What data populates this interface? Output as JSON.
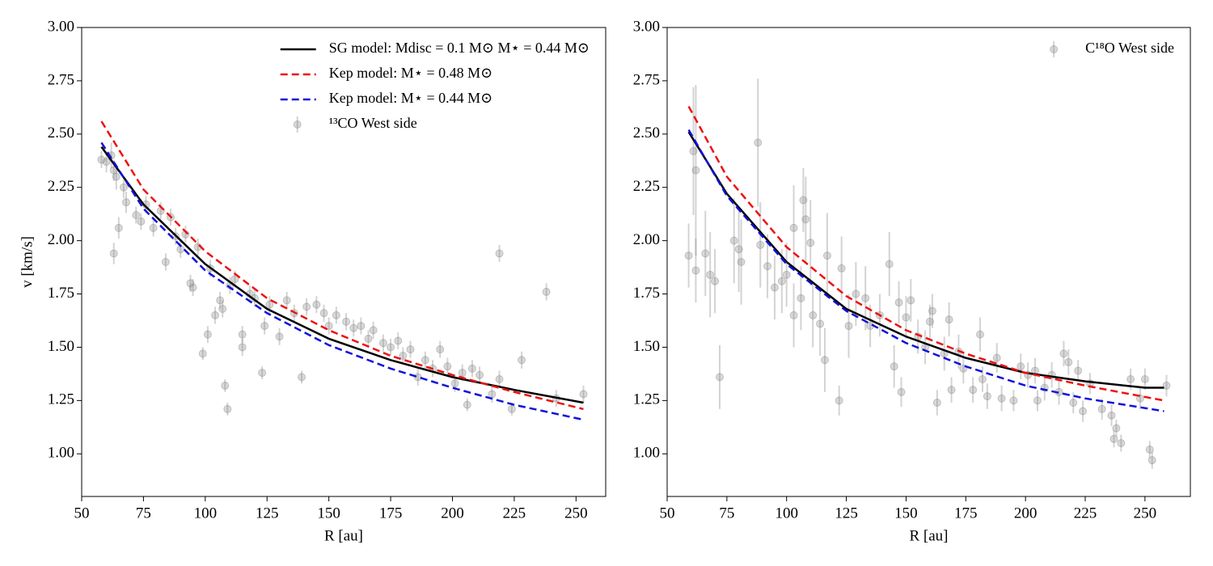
{
  "chart_data": [
    {
      "type": "scatter",
      "xlabel": "R [au]",
      "ylabel": "v [km/s]",
      "xlim": [
        50,
        262
      ],
      "ylim": [
        0.8,
        3.0
      ],
      "xticks": [
        50,
        75,
        100,
        125,
        150,
        175,
        200,
        225,
        250
      ],
      "yticks": [
        {
          "value": 1,
          "label": "1.00"
        },
        1.25,
        {
          "value": 1.5,
          "label": "1.50"
        },
        1.75,
        {
          "value": 2,
          "label": "2.00"
        },
        2.25,
        {
          "value": 2.5,
          "label": "2.50"
        },
        2.75,
        {
          "value": 3,
          "label": "3.00"
        }
      ],
      "legend": "upper right",
      "series": [
        {
          "name": "SG model: Mdisc = 0.1 M⊙ M⋆ = 0.44 M⊙",
          "kind": "line",
          "style": "solid",
          "color": "#000000",
          "x": [
            58,
            75,
            100,
            125,
            150,
            175,
            200,
            225,
            253
          ],
          "values": [
            2.44,
            2.17,
            1.89,
            1.68,
            1.54,
            1.44,
            1.36,
            1.3,
            1.24
          ]
        },
        {
          "name": "Kep model: M⋆ = 0.48 M⊙",
          "kind": "line",
          "style": "dashed",
          "color": "#ee1111",
          "x": [
            58,
            75,
            100,
            125,
            150,
            175,
            200,
            225,
            253
          ],
          "values": [
            2.56,
            2.24,
            1.95,
            1.73,
            1.58,
            1.46,
            1.37,
            1.29,
            1.21
          ]
        },
        {
          "name": "Kep model: M⋆ = 0.44 M⊙",
          "kind": "line",
          "style": "dashed",
          "color": "#1111dd",
          "x": [
            58,
            75,
            100,
            125,
            150,
            175,
            200,
            225,
            253
          ],
          "values": [
            2.46,
            2.15,
            1.86,
            1.66,
            1.51,
            1.4,
            1.31,
            1.23,
            1.16
          ]
        },
        {
          "name": "¹³CO West side",
          "kind": "errorbar",
          "color": "#808080",
          "x": [
            58,
            60,
            62,
            63,
            63,
            64,
            65,
            67,
            68,
            72,
            74,
            76,
            79,
            82,
            84,
            86,
            88,
            90,
            92,
            94,
            95,
            97,
            99,
            101,
            102,
            104,
            106,
            107,
            108,
            109,
            110,
            112,
            115,
            115,
            118,
            120,
            123,
            124,
            126,
            130,
            133,
            136,
            139,
            141,
            145,
            148,
            150,
            153,
            157,
            160,
            163,
            166,
            168,
            172,
            175,
            178,
            180,
            183,
            186,
            189,
            192,
            195,
            198,
            201,
            204,
            206,
            208,
            211,
            216,
            219,
            219,
            224,
            228,
            238,
            242,
            253
          ],
          "values": [
            2.38,
            2.37,
            2.4,
            1.94,
            2.33,
            2.3,
            2.06,
            2.25,
            2.18,
            2.12,
            2.09,
            2.17,
            2.06,
            2.14,
            1.9,
            2.11,
            2.02,
            1.96,
            2.03,
            1.8,
            1.78,
            1.97,
            1.47,
            1.56,
            1.87,
            1.65,
            1.72,
            1.68,
            1.32,
            1.21,
            1.79,
            1.82,
            1.56,
            1.5,
            1.75,
            1.73,
            1.38,
            1.6,
            1.7,
            1.55,
            1.72,
            1.66,
            1.36,
            1.69,
            1.7,
            1.66,
            1.6,
            1.65,
            1.62,
            1.59,
            1.6,
            1.54,
            1.58,
            1.52,
            1.5,
            1.53,
            1.46,
            1.49,
            1.36,
            1.44,
            1.4,
            1.49,
            1.41,
            1.33,
            1.38,
            1.23,
            1.4,
            1.37,
            1.28,
            1.35,
            1.94,
            1.21,
            1.44,
            1.76,
            1.26,
            1.28
          ],
          "errors": [
            0.04,
            0.05,
            0.06,
            0.05,
            0.05,
            0.06,
            0.05,
            0.05,
            0.05,
            0.04,
            0.04,
            0.04,
            0.04,
            0.04,
            0.04,
            0.04,
            0.04,
            0.04,
            0.04,
            0.04,
            0.04,
            0.04,
            0.03,
            0.04,
            0.04,
            0.04,
            0.04,
            0.04,
            0.03,
            0.03,
            0.04,
            0.04,
            0.04,
            0.04,
            0.04,
            0.04,
            0.03,
            0.04,
            0.04,
            0.04,
            0.04,
            0.04,
            0.03,
            0.04,
            0.04,
            0.04,
            0.04,
            0.04,
            0.04,
            0.04,
            0.04,
            0.04,
            0.04,
            0.04,
            0.04,
            0.04,
            0.04,
            0.04,
            0.04,
            0.04,
            0.04,
            0.04,
            0.04,
            0.04,
            0.04,
            0.03,
            0.04,
            0.04,
            0.04,
            0.04,
            0.04,
            0.03,
            0.04,
            0.04,
            0.04,
            0.04
          ]
        }
      ]
    },
    {
      "type": "scatter",
      "xlabel": "R [au]",
      "xlim": [
        50,
        269
      ],
      "ylim": [
        0.8,
        3.0
      ],
      "xticks": [
        50,
        75,
        100,
        125,
        150,
        175,
        200,
        225,
        250
      ],
      "yticks": [
        {
          "value": 1,
          "label": "1.00"
        },
        1.25,
        {
          "value": 1.5,
          "label": "1.50"
        },
        1.75,
        {
          "value": 2,
          "label": "2.00"
        },
        2.25,
        {
          "value": 2.5,
          "label": "2.50"
        },
        2.75,
        {
          "value": 3,
          "label": "3.00"
        }
      ],
      "legend": "upper right",
      "series": [
        {
          "kind": "line",
          "style": "solid",
          "color": "#000000",
          "x": [
            59,
            75,
            100,
            125,
            150,
            175,
            200,
            225,
            250,
            258
          ],
          "values": [
            2.51,
            2.22,
            1.9,
            1.68,
            1.55,
            1.45,
            1.38,
            1.34,
            1.31,
            1.31
          ]
        },
        {
          "kind": "line",
          "style": "dashed",
          "color": "#ee1111",
          "x": [
            59,
            75,
            100,
            125,
            150,
            175,
            200,
            225,
            258
          ],
          "values": [
            2.63,
            2.3,
            1.97,
            1.74,
            1.58,
            1.47,
            1.38,
            1.32,
            1.25
          ]
        },
        {
          "kind": "line",
          "style": "dashed",
          "color": "#1111dd",
          "x": [
            59,
            75,
            100,
            125,
            150,
            175,
            200,
            225,
            258
          ],
          "values": [
            2.52,
            2.21,
            1.89,
            1.67,
            1.52,
            1.41,
            1.32,
            1.26,
            1.2
          ]
        },
        {
          "name": "C¹⁸O West side",
          "kind": "errorbar",
          "color": "#808080",
          "x": [
            59,
            61,
            62,
            62,
            66,
            68,
            70,
            72,
            78,
            80,
            81,
            88,
            89,
            92,
            95,
            98,
            100,
            103,
            103,
            106,
            107,
            108,
            110,
            111,
            114,
            116,
            117,
            122,
            123,
            126,
            129,
            133,
            135,
            139,
            143,
            145,
            147,
            148,
            150,
            152,
            155,
            158,
            160,
            161,
            163,
            166,
            168,
            169,
            172,
            174,
            178,
            181,
            182,
            184,
            188,
            190,
            195,
            198,
            201,
            204,
            205,
            208,
            211,
            214,
            216,
            218,
            220,
            222,
            224,
            227,
            232,
            236,
            237,
            238,
            240,
            244,
            248,
            250,
            252,
            253,
            259
          ],
          "values": [
            1.93,
            2.42,
            2.33,
            1.86,
            1.94,
            1.84,
            1.81,
            1.36,
            2.0,
            1.96,
            1.9,
            2.46,
            1.98,
            1.88,
            1.78,
            1.81,
            1.84,
            2.06,
            1.65,
            1.73,
            2.19,
            2.1,
            1.99,
            1.65,
            1.61,
            1.44,
            1.93,
            1.25,
            1.87,
            1.6,
            1.75,
            1.73,
            1.6,
            1.65,
            1.89,
            1.41,
            1.71,
            1.29,
            1.64,
            1.72,
            1.55,
            1.5,
            1.62,
            1.67,
            1.24,
            1.47,
            1.63,
            1.3,
            1.48,
            1.4,
            1.3,
            1.56,
            1.35,
            1.27,
            1.45,
            1.26,
            1.25,
            1.41,
            1.37,
            1.39,
            1.25,
            1.31,
            1.37,
            1.29,
            1.47,
            1.43,
            1.24,
            1.39,
            1.2,
            1.33,
            1.21,
            1.18,
            1.07,
            1.12,
            1.05,
            1.35,
            1.26,
            1.35,
            1.02,
            0.97,
            1.32
          ],
          "errors": [
            0.15,
            0.3,
            0.4,
            0.15,
            0.2,
            0.2,
            0.15,
            0.15,
            0.2,
            0.2,
            0.2,
            0.3,
            0.2,
            0.15,
            0.15,
            0.15,
            0.15,
            0.2,
            0.15,
            0.15,
            0.15,
            0.2,
            0.2,
            0.15,
            0.15,
            0.15,
            0.2,
            0.07,
            0.15,
            0.15,
            0.15,
            0.15,
            0.1,
            0.1,
            0.15,
            0.1,
            0.1,
            0.07,
            0.1,
            0.1,
            0.08,
            0.08,
            0.08,
            0.08,
            0.06,
            0.08,
            0.08,
            0.06,
            0.08,
            0.07,
            0.06,
            0.08,
            0.06,
            0.06,
            0.07,
            0.06,
            0.05,
            0.06,
            0.06,
            0.06,
            0.05,
            0.06,
            0.06,
            0.06,
            0.06,
            0.06,
            0.05,
            0.05,
            0.05,
            0.05,
            0.05,
            0.05,
            0.04,
            0.04,
            0.04,
            0.05,
            0.05,
            0.05,
            0.04,
            0.04,
            0.05
          ]
        }
      ]
    }
  ]
}
